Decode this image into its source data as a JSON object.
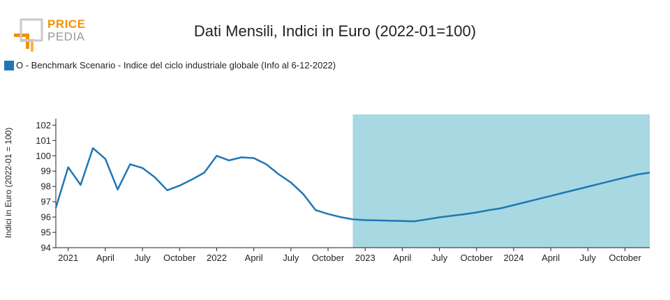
{
  "logo": {
    "word_top": "PRICE",
    "word_bottom": "PEDIA"
  },
  "title": "Dati Mensili, Indici in Euro (2022-01=100)",
  "legend": {
    "label": "O - Benchmark Scenario - Indice del ciclo industriale globale (Info al 6-12-2022)"
  },
  "colors": {
    "line": "#1f77b4",
    "forecast_band": "#a8d8e1",
    "logo_orange": "#f39200",
    "logo_gray": "#9a9a9a"
  },
  "chart_data": {
    "type": "line",
    "title": "Dati Mensili, Indici in Euro (2022-01=100)",
    "ylabel": "Indici in Euro (2022-01 = 100)",
    "xlabel": "",
    "ylim": [
      94,
      102.7
    ],
    "xlim": [
      "2020-12-01",
      "2024-11-01"
    ],
    "yticks": [
      94,
      95,
      96,
      97,
      98,
      99,
      100,
      101,
      102
    ],
    "xticks": [
      {
        "date": "2021-01",
        "label": "2021"
      },
      {
        "date": "2021-04",
        "label": "April"
      },
      {
        "date": "2021-07",
        "label": "July"
      },
      {
        "date": "2021-10",
        "label": "October"
      },
      {
        "date": "2022-01",
        "label": "2022"
      },
      {
        "date": "2022-04",
        "label": "April"
      },
      {
        "date": "2022-07",
        "label": "July"
      },
      {
        "date": "2022-10",
        "label": "October"
      },
      {
        "date": "2023-01",
        "label": "2023"
      },
      {
        "date": "2023-04",
        "label": "April"
      },
      {
        "date": "2023-07",
        "label": "July"
      },
      {
        "date": "2023-10",
        "label": "October"
      },
      {
        "date": "2024-01",
        "label": "2024"
      },
      {
        "date": "2024-04",
        "label": "April"
      },
      {
        "date": "2024-07",
        "label": "July"
      },
      {
        "date": "2024-10",
        "label": "October"
      }
    ],
    "forecast_band": {
      "from": "2022-12-01",
      "to": "2024-11-01"
    },
    "grid": false,
    "legend_position": "top-left",
    "series": [
      {
        "name": "O - Benchmark Scenario - Indice del ciclo industriale globale (Info al 6-12-2022)",
        "color": "#1f77b4",
        "points": [
          [
            "2020-12",
            96.6
          ],
          [
            "2021-01",
            99.25
          ],
          [
            "2021-02",
            98.1
          ],
          [
            "2021-03",
            100.5
          ],
          [
            "2021-04",
            99.8
          ],
          [
            "2021-05",
            97.8
          ],
          [
            "2021-06",
            99.45
          ],
          [
            "2021-07",
            99.2
          ],
          [
            "2021-08",
            98.6
          ],
          [
            "2021-09",
            97.75
          ],
          [
            "2021-10",
            98.05
          ],
          [
            "2021-11",
            98.45
          ],
          [
            "2021-12",
            98.9
          ],
          [
            "2022-01",
            100.0
          ],
          [
            "2022-02",
            99.7
          ],
          [
            "2022-03",
            99.9
          ],
          [
            "2022-04",
            99.85
          ],
          [
            "2022-05",
            99.45
          ],
          [
            "2022-06",
            98.8
          ],
          [
            "2022-07",
            98.25
          ],
          [
            "2022-08",
            97.5
          ],
          [
            "2022-09",
            96.45
          ],
          [
            "2022-10",
            96.2
          ],
          [
            "2022-11",
            96.0
          ],
          [
            "2022-12",
            95.85
          ],
          [
            "2023-01",
            95.8
          ],
          [
            "2023-02",
            95.78
          ],
          [
            "2023-03",
            95.76
          ],
          [
            "2023-04",
            95.74
          ],
          [
            "2023-05",
            95.72
          ],
          [
            "2023-06",
            95.85
          ],
          [
            "2023-07",
            95.98
          ],
          [
            "2023-08",
            96.08
          ],
          [
            "2023-09",
            96.18
          ],
          [
            "2023-10",
            96.3
          ],
          [
            "2023-11",
            96.45
          ],
          [
            "2023-12",
            96.58
          ],
          [
            "2024-01",
            96.78
          ],
          [
            "2024-02",
            96.98
          ],
          [
            "2024-03",
            97.18
          ],
          [
            "2024-04",
            97.38
          ],
          [
            "2024-05",
            97.58
          ],
          [
            "2024-06",
            97.78
          ],
          [
            "2024-07",
            97.98
          ],
          [
            "2024-08",
            98.18
          ],
          [
            "2024-09",
            98.38
          ],
          [
            "2024-10",
            98.58
          ],
          [
            "2024-11",
            98.78
          ],
          [
            "2024-12",
            98.9
          ]
        ]
      }
    ]
  }
}
